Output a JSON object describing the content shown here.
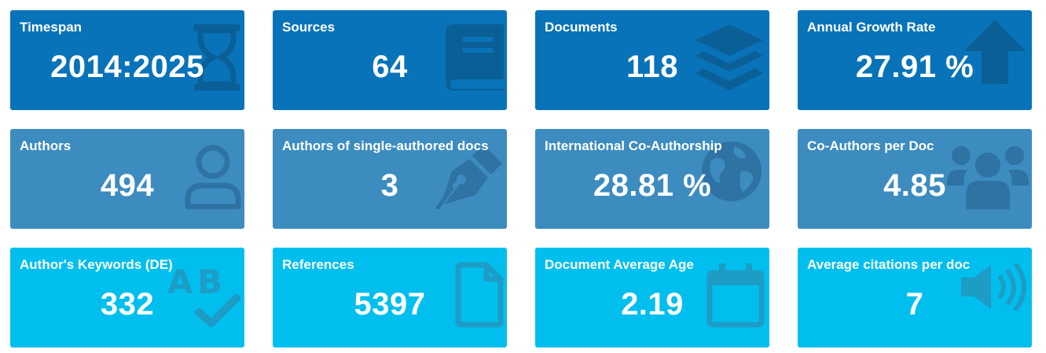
{
  "cards": [
    {
      "title": "Timespan",
      "value": "2014:2025",
      "icon": "hourglass-icon"
    },
    {
      "title": "Sources",
      "value": "64",
      "icon": "book-icon"
    },
    {
      "title": "Documents",
      "value": "118",
      "icon": "layers-icon"
    },
    {
      "title": "Annual Growth Rate",
      "value": "27.91 %",
      "icon": "arrow-up-icon"
    },
    {
      "title": "Authors",
      "value": "494",
      "icon": "user-icon"
    },
    {
      "title": "Authors of single-authored docs",
      "value": "3",
      "icon": "pen-nib-icon"
    },
    {
      "title": "International Co-Authorship",
      "value": "28.81 %",
      "icon": "globe-icon"
    },
    {
      "title": "Co-Authors per Doc",
      "value": "4.85",
      "icon": "users-icon"
    },
    {
      "title": "Author's Keywords (DE)",
      "value": "332",
      "icon": "spell-check-icon"
    },
    {
      "title": "References",
      "value": "5397",
      "icon": "file-icon"
    },
    {
      "title": "Document Average Age",
      "value": "2.19",
      "icon": "calendar-icon"
    },
    {
      "title": "Average citations per doc",
      "value": "7",
      "icon": "volume-icon"
    }
  ],
  "colors": {
    "row1": "#0873b9",
    "row2": "#3c8cc0",
    "row3": "#00bfee"
  }
}
